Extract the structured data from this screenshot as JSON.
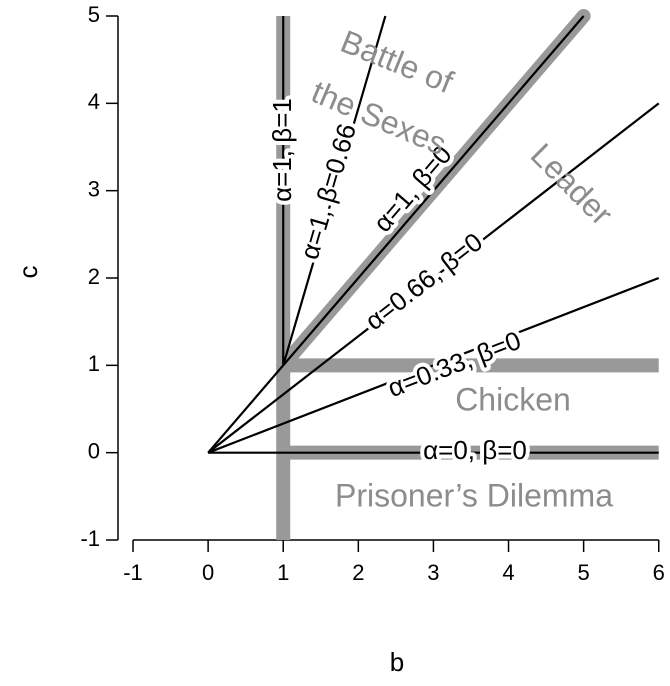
{
  "chart_data": {
    "type": "line",
    "x_label": "b",
    "y_label": "c",
    "xlim": [
      -1.2,
      6.15
    ],
    "ylim": [
      -1,
      5
    ],
    "xticks": [
      -1,
      0,
      1,
      2,
      3,
      4,
      5,
      6
    ],
    "yticks": [
      -1,
      0,
      1,
      2,
      3,
      4,
      5
    ],
    "boundary_color": "#999999",
    "boundaries": [
      {
        "x": [
          1,
          1
        ],
        "values": [
          -1,
          5
        ]
      },
      {
        "x": [
          1,
          6
        ],
        "values": [
          1,
          1
        ]
      },
      {
        "x": [
          1,
          6
        ],
        "values": [
          0,
          0
        ]
      },
      {
        "x": [
          1,
          5
        ],
        "values": [
          1,
          5
        ]
      }
    ],
    "series": [
      {
        "name": "α=0, β=0",
        "color": "#000000",
        "x": [
          0,
          6
        ],
        "values": [
          0,
          0
        ]
      },
      {
        "name": "α=0.33, β=0",
        "color": "#000000",
        "x": [
          0,
          6
        ],
        "values": [
          0,
          2
        ]
      },
      {
        "name": "α=0.66, β=0",
        "color": "#000000",
        "x": [
          0,
          6
        ],
        "values": [
          0,
          4
        ]
      },
      {
        "name": "α=1, β=0",
        "color": "#000000",
        "x": [
          0,
          5
        ],
        "values": [
          0,
          5
        ]
      },
      {
        "name": "α=1, β=0.66",
        "color": "#000000",
        "x": [
          1,
          2.36
        ],
        "values": [
          1,
          5
        ]
      },
      {
        "name": "α=1, β=1",
        "color": "#000000",
        "x": [
          1,
          1
        ],
        "values": [
          1,
          5
        ]
      }
    ],
    "annotations": [
      "Battle of",
      "the Sexes",
      "Leader",
      "Chicken",
      "Prisoner’s Dilemma"
    ]
  }
}
